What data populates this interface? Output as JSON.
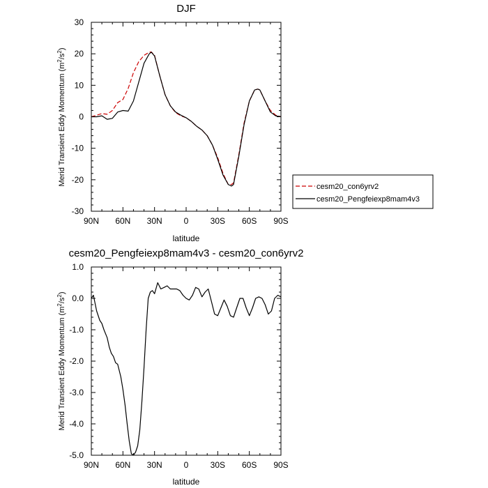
{
  "chart_data": [
    {
      "type": "line",
      "title": "DJF",
      "xlabel": "latitude",
      "ylabel": "Merid Transient Eddy Momentum (m",
      "ylabel_units": "2",
      "ylabel_mid": "/s",
      "ylabel_units2": "2",
      "ylabel_end": ")",
      "x_ticks": [
        {
          "value": 90,
          "label": "90N"
        },
        {
          "value": 60,
          "label": "60N"
        },
        {
          "value": 30,
          "label": "30N"
        },
        {
          "value": 0,
          "label": "0"
        },
        {
          "value": -30,
          "label": "30S"
        },
        {
          "value": -60,
          "label": "60S"
        },
        {
          "value": -90,
          "label": "90S"
        }
      ],
      "y_ticks": [
        {
          "value": 30,
          "label": "30"
        },
        {
          "value": 20,
          "label": "20"
        },
        {
          "value": 10,
          "label": "10"
        },
        {
          "value": 0,
          "label": "0"
        },
        {
          "value": -10,
          "label": "-10"
        },
        {
          "value": -20,
          "label": "-20"
        },
        {
          "value": -30,
          "label": "-30"
        }
      ],
      "xlim": [
        90,
        -90
      ],
      "ylim": [
        -30,
        30
      ],
      "legend": {
        "placement": "right",
        "entries": [
          {
            "name": "cesm20_con6yrv2",
            "color": "#cc0000",
            "dash": "dashed"
          },
          {
            "name": "cesm20_Pengfeiexp8mam4v3",
            "color": "#000000",
            "dash": "solid"
          }
        ]
      },
      "series": [
        {
          "name": "cesm20_con6yrv2",
          "color": "#cc0000",
          "x": [
            90,
            85,
            80,
            75,
            70,
            65,
            60,
            55,
            50,
            45,
            40,
            35,
            33,
            30,
            25,
            20,
            15,
            10,
            5,
            0,
            -5,
            -10,
            -15,
            -20,
            -25,
            -30,
            -35,
            -40,
            -43,
            -45,
            -50,
            -55,
            -60,
            -65,
            -68,
            -70,
            -75,
            -80,
            -85,
            -90
          ],
          "y": [
            0,
            0.5,
            1,
            0.8,
            2.0,
            4.5,
            5.5,
            9.0,
            14.0,
            17.5,
            19.5,
            20.5,
            20.6,
            19.5,
            13.0,
            7.0,
            3.5,
            1.3,
            0.3,
            -0.3,
            -1.5,
            -3.0,
            -4.2,
            -6.0,
            -9.0,
            -13.0,
            -18.0,
            -21.5,
            -21.5,
            -21.0,
            -12.0,
            -2.0,
            5.0,
            8.5,
            8.8,
            8.5,
            5.0,
            2.0,
            0.5,
            0
          ]
        },
        {
          "name": "cesm20_Pengfeiexp8mam4v3",
          "color": "#000000",
          "x": [
            90,
            85,
            80,
            75,
            70,
            65,
            60,
            55,
            50,
            45,
            40,
            35,
            33,
            30,
            25,
            20,
            15,
            10,
            5,
            0,
            -5,
            -10,
            -15,
            -20,
            -25,
            -30,
            -35,
            -40,
            -43,
            -45,
            -50,
            -55,
            -60,
            -65,
            -68,
            -70,
            -75,
            -80,
            -85,
            -90
          ],
          "y": [
            0,
            0,
            0.3,
            -0.8,
            -0.5,
            1.5,
            2.0,
            1.8,
            5.0,
            11.0,
            17.0,
            20.0,
            20.5,
            19.3,
            13.0,
            7.0,
            3.5,
            1.5,
            0.5,
            -0.3,
            -1.5,
            -3.0,
            -4.2,
            -6.0,
            -9.0,
            -13.5,
            -18.5,
            -21.5,
            -22.0,
            -21.5,
            -12.5,
            -2.5,
            5.0,
            8.5,
            8.8,
            8.5,
            5.0,
            1.5,
            0.3,
            0
          ]
        }
      ]
    },
    {
      "type": "line",
      "title": "cesm20_Pengfeiexp8mam4v3 - cesm20_con6yrv2",
      "xlabel": "latitude",
      "ylabel": "Merid Transient Eddy Momentum (m",
      "ylabel_units": "2",
      "ylabel_mid": "/s",
      "ylabel_units2": "2",
      "ylabel_end": ")",
      "x_ticks": [
        {
          "value": 90,
          "label": "90N"
        },
        {
          "value": 60,
          "label": "60N"
        },
        {
          "value": 30,
          "label": "30N"
        },
        {
          "value": 0,
          "label": "0"
        },
        {
          "value": -30,
          "label": "30S"
        },
        {
          "value": -60,
          "label": "60S"
        },
        {
          "value": -90,
          "label": "90S"
        }
      ],
      "y_ticks": [
        {
          "value": 1,
          "label": "1.0"
        },
        {
          "value": 0,
          "label": "0.0"
        },
        {
          "value": -1,
          "label": "-1.0"
        },
        {
          "value": -2,
          "label": "-2.0"
        },
        {
          "value": -3,
          "label": "-3.0"
        },
        {
          "value": -4,
          "label": "-4.0"
        },
        {
          "value": -5,
          "label": "-5.0"
        }
      ],
      "xlim": [
        90,
        -90
      ],
      "ylim": [
        -5,
        1
      ],
      "series": [
        {
          "color": "#000000",
          "x": [
            90,
            88,
            85,
            82,
            80,
            78,
            75,
            73,
            71,
            69,
            67,
            65,
            62,
            60,
            58,
            56,
            54,
            52,
            50,
            48,
            46,
            44,
            42,
            40,
            38,
            36,
            34,
            32,
            30,
            27,
            24,
            21,
            18,
            15,
            12,
            9,
            6,
            3,
            0,
            -3,
            -6,
            -9,
            -12,
            -15,
            -18,
            -21,
            -24,
            -27,
            -30,
            -33,
            -36,
            -39,
            -42,
            -45,
            -48,
            -51,
            -54,
            -57,
            -60,
            -63,
            -66,
            -69,
            -72,
            -75,
            -78,
            -81,
            -84,
            -87,
            -90
          ],
          "y": [
            0,
            0.1,
            -0.4,
            -0.7,
            -0.8,
            -1.0,
            -1.25,
            -1.55,
            -1.75,
            -1.85,
            -2.05,
            -2.1,
            -2.5,
            -2.9,
            -3.4,
            -4.0,
            -4.55,
            -4.95,
            -5.0,
            -4.9,
            -4.7,
            -4.2,
            -3.3,
            -2.2,
            -1.0,
            0.0,
            0.2,
            0.25,
            0.15,
            0.5,
            0.3,
            0.35,
            0.4,
            0.3,
            0.3,
            0.3,
            0.25,
            0.1,
            0.0,
            -0.05,
            0.1,
            0.35,
            0.3,
            0.05,
            0.2,
            0.3,
            -0.1,
            -0.5,
            -0.55,
            -0.3,
            -0.05,
            -0.25,
            -0.55,
            -0.6,
            -0.3,
            0.0,
            0.0,
            -0.3,
            -0.55,
            -0.3,
            0.0,
            0.05,
            0.0,
            -0.2,
            -0.5,
            -0.4,
            0.0,
            0.1,
            0.05
          ]
        }
      ]
    }
  ]
}
